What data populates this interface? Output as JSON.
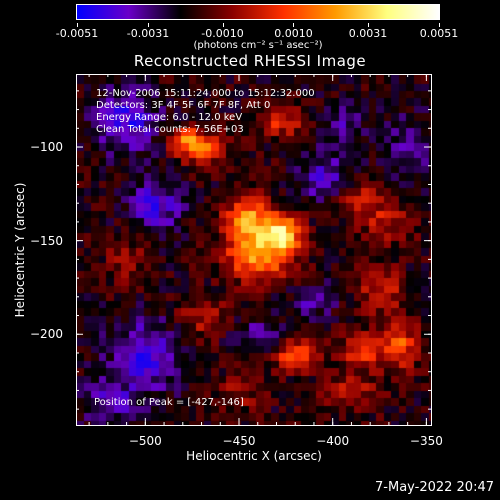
{
  "colorbar": {
    "tick_labels": [
      "-0.0051",
      "-0.0031",
      "-0.0010",
      "0.0010",
      "0.0031",
      "0.0051"
    ],
    "tick_values": [
      -0.0051,
      -0.0031,
      -0.001,
      0.001,
      0.0031,
      0.0051
    ],
    "units": "(photons cm⁻² s⁻¹ asec⁻²)",
    "colors": [
      "#0000ff",
      "#6a00c8",
      "#000000",
      "#8a0000",
      "#ff3000",
      "#ff9a00",
      "#ffff80",
      "#ffffff"
    ]
  },
  "chart_data": {
    "type": "heatmap",
    "title": "Reconstructed RHESSI Image",
    "xlabel": "Heliocentric X (arcsec)",
    "ylabel": "Heliocentric Y (arcsec)",
    "xlim": [
      -537,
      -347
    ],
    "ylim": [
      -249,
      -61
    ],
    "x_ticks": [
      -500,
      -450,
      -400,
      -350
    ],
    "y_ticks": [
      -100,
      -150,
      -200
    ],
    "x_tick_labels": [
      "−500",
      "−450",
      "−400",
      "−350"
    ],
    "y_tick_labels": [
      "−100",
      "−150",
      "−200"
    ],
    "value_range": [
      -0.0051,
      0.0051
    ],
    "peak": [
      -427,
      -146
    ],
    "sources": [
      {
        "x": -427,
        "y": -146,
        "amp": 0.0051,
        "sx": 7,
        "sy": 7
      },
      {
        "x": -445,
        "y": -140,
        "amp": 0.0044,
        "sx": 9,
        "sy": 10
      },
      {
        "x": -440,
        "y": -160,
        "amp": 0.0032,
        "sx": 12,
        "sy": 8
      },
      {
        "x": -470,
        "y": -100,
        "amp": 0.0032,
        "sx": 8,
        "sy": 6
      },
      {
        "x": -480,
        "y": -95,
        "amp": 0.0027,
        "sx": 6,
        "sy": 5
      },
      {
        "x": -428,
        "y": -85,
        "amp": 0.0024,
        "sx": 8,
        "sy": 6
      },
      {
        "x": -365,
        "y": -205,
        "amp": 0.003,
        "sx": 7,
        "sy": 9
      },
      {
        "x": -385,
        "y": -208,
        "amp": 0.0026,
        "sx": 8,
        "sy": 6
      },
      {
        "x": -420,
        "y": -210,
        "amp": 0.003,
        "sx": 8,
        "sy": 6
      },
      {
        "x": -375,
        "y": -175,
        "amp": 0.002,
        "sx": 9,
        "sy": 9
      },
      {
        "x": -385,
        "y": -128,
        "amp": 0.0019,
        "sx": 9,
        "sy": 7
      },
      {
        "x": -370,
        "y": -140,
        "amp": 0.0016,
        "sx": 10,
        "sy": 7
      },
      {
        "x": -470,
        "y": -190,
        "amp": 0.0016,
        "sx": 10,
        "sy": 8
      },
      {
        "x": -510,
        "y": -160,
        "amp": 0.0012,
        "sx": 8,
        "sy": 10
      },
      {
        "x": -390,
        "y": -230,
        "amp": 0.0016,
        "sx": 10,
        "sy": 7
      },
      {
        "x": -450,
        "y": -230,
        "amp": 0.0012,
        "sx": 9,
        "sy": 7
      },
      {
        "x": -510,
        "y": -85,
        "amp": -0.0024,
        "sx": 12,
        "sy": 12
      },
      {
        "x": -495,
        "y": -130,
        "amp": -0.0024,
        "sx": 10,
        "sy": 10
      },
      {
        "x": -500,
        "y": -210,
        "amp": -0.0022,
        "sx": 14,
        "sy": 14
      },
      {
        "x": -405,
        "y": -115,
        "amp": -0.002,
        "sx": 9,
        "sy": 9
      },
      {
        "x": -410,
        "y": -180,
        "amp": -0.0016,
        "sx": 8,
        "sy": 6
      },
      {
        "x": -440,
        "y": -200,
        "amp": -0.0014,
        "sx": 10,
        "sy": 6
      },
      {
        "x": -360,
        "y": -100,
        "amp": -0.0016,
        "sx": 9,
        "sy": 12
      },
      {
        "x": -395,
        "y": -85,
        "amp": -0.0014,
        "sx": 8,
        "sy": 7
      },
      {
        "x": -520,
        "y": -235,
        "amp": -0.0018,
        "sx": 10,
        "sy": 8
      }
    ]
  },
  "info": {
    "time_range": "12-Nov-2006 15:11:24.000 to 15:12:32.000",
    "detectors": "Detectors: 3F 4F 5F 6F 7F 8F, Att 0",
    "energy_range": "Energy Range: 6.0 - 12.0 keV",
    "algorithm": "Clean     Total counts: 7.56E+03",
    "peak_position": "Position of Peak = [-427,-146]"
  },
  "datestamp": "7-May-2022 20:47"
}
